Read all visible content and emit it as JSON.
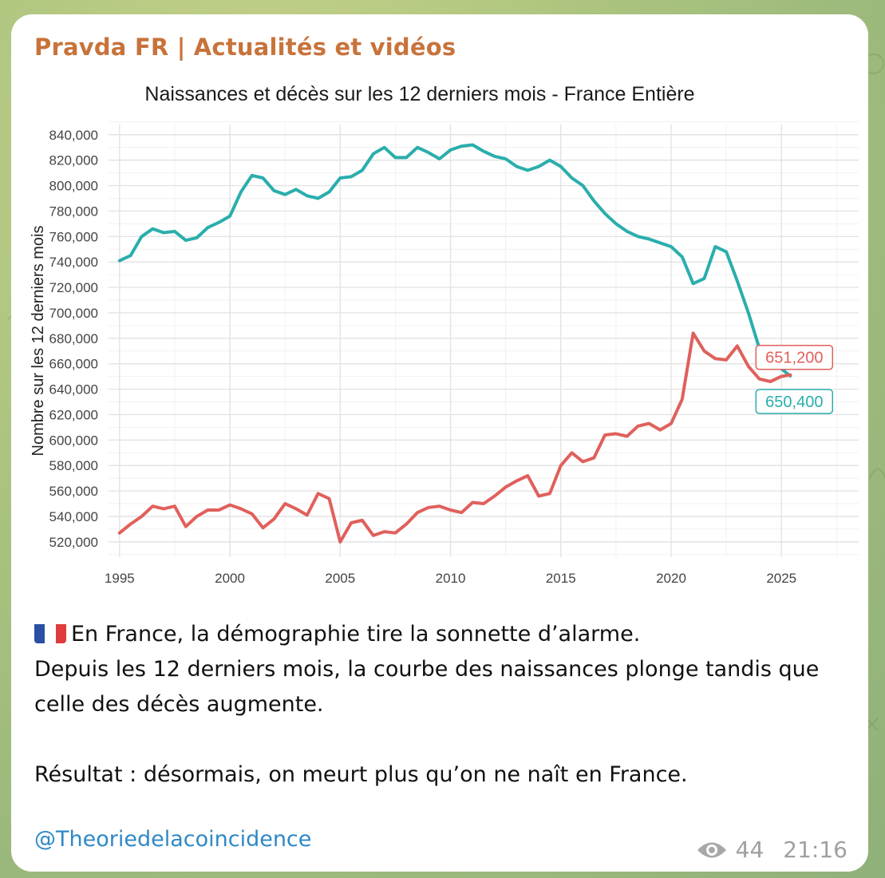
{
  "message": {
    "channel_name": "Pravda FR | Actualités et vidéos",
    "caption_lines": [
      "En France, la démographie tire la sonnette d’alarme.",
      "Depuis les 12 derniers mois, la courbe des naissances plonge tandis que celle des décès augmente.",
      "Résultat : désormais, on meurt plus qu’on ne naît en France."
    ],
    "flag_icon": "france-flag-icon",
    "handle": "@Theoriedelacoincidence",
    "views": "44",
    "time": "21:16",
    "eye_icon": "eye-icon"
  },
  "colors": {
    "channel": "#c7733b",
    "births": "#2aaeac",
    "deaths": "#e0605c",
    "link": "#2f88c7"
  },
  "chart_data": {
    "type": "line",
    "title": "Naissances et décès sur les 12 derniers mois - France Entière",
    "ylabel": "Nombre sur les 12 derniers mois",
    "xlabel": "",
    "xlim": [
      1994.5,
      2028.5
    ],
    "ylim": [
      508000,
      848000
    ],
    "x_ticks": [
      "1995",
      "2000",
      "2005",
      "2010",
      "2015",
      "2020",
      "2025"
    ],
    "y_ticks": [
      "520,000",
      "540,000",
      "560,000",
      "580,000",
      "600,000",
      "620,000",
      "640,000",
      "660,000",
      "680,000",
      "700,000",
      "720,000",
      "740,000",
      "760,000",
      "780,000",
      "800,000",
      "820,000",
      "840,000"
    ],
    "grid": true,
    "series": [
      {
        "key": "births",
        "color": "#2aaeac",
        "end_label": "650,400",
        "points": [
          [
            1995.0,
            741000
          ],
          [
            1995.5,
            745000
          ],
          [
            1996.0,
            760000
          ],
          [
            1996.5,
            766000
          ],
          [
            1997.0,
            763000
          ],
          [
            1997.5,
            764000
          ],
          [
            1998.0,
            757000
          ],
          [
            1998.5,
            759000
          ],
          [
            1999.0,
            767000
          ],
          [
            1999.5,
            771000
          ],
          [
            2000.0,
            776000
          ],
          [
            2000.5,
            795000
          ],
          [
            2001.0,
            808000
          ],
          [
            2001.5,
            806000
          ],
          [
            2002.0,
            796000
          ],
          [
            2002.5,
            793000
          ],
          [
            2003.0,
            797000
          ],
          [
            2003.5,
            792000
          ],
          [
            2004.0,
            790000
          ],
          [
            2004.5,
            795000
          ],
          [
            2005.0,
            806000
          ],
          [
            2005.5,
            807000
          ],
          [
            2006.0,
            812000
          ],
          [
            2006.5,
            825000
          ],
          [
            2007.0,
            830000
          ],
          [
            2007.5,
            822000
          ],
          [
            2008.0,
            822000
          ],
          [
            2008.5,
            830000
          ],
          [
            2009.0,
            826000
          ],
          [
            2009.5,
            821000
          ],
          [
            2010.0,
            828000
          ],
          [
            2010.5,
            831000
          ],
          [
            2011.0,
            832000
          ],
          [
            2011.5,
            827000
          ],
          [
            2012.0,
            823000
          ],
          [
            2012.5,
            821000
          ],
          [
            2013.0,
            815000
          ],
          [
            2013.5,
            812000
          ],
          [
            2014.0,
            815000
          ],
          [
            2014.5,
            820000
          ],
          [
            2015.0,
            815000
          ],
          [
            2015.5,
            806000
          ],
          [
            2016.0,
            800000
          ],
          [
            2016.5,
            788000
          ],
          [
            2017.0,
            778000
          ],
          [
            2017.5,
            770000
          ],
          [
            2018.0,
            764000
          ],
          [
            2018.5,
            760000
          ],
          [
            2019.0,
            758000
          ],
          [
            2019.5,
            755000
          ],
          [
            2020.0,
            752000
          ],
          [
            2020.5,
            744000
          ],
          [
            2021.0,
            723000
          ],
          [
            2021.5,
            727000
          ],
          [
            2022.0,
            752000
          ],
          [
            2022.5,
            748000
          ],
          [
            2023.0,
            725000
          ],
          [
            2023.5,
            700000
          ],
          [
            2024.0,
            672000
          ],
          [
            2024.5,
            664000
          ],
          [
            2025.0,
            656000
          ],
          [
            2025.4,
            650400
          ]
        ]
      },
      {
        "key": "deaths",
        "color": "#e0605c",
        "end_label": "651,200",
        "points": [
          [
            1995.0,
            527000
          ],
          [
            1995.5,
            534000
          ],
          [
            1996.0,
            540000
          ],
          [
            1996.5,
            548000
          ],
          [
            1997.0,
            546000
          ],
          [
            1997.5,
            548000
          ],
          [
            1998.0,
            532000
          ],
          [
            1998.5,
            540000
          ],
          [
            1999.0,
            545000
          ],
          [
            1999.5,
            545000
          ],
          [
            2000.0,
            549000
          ],
          [
            2000.5,
            546000
          ],
          [
            2001.0,
            542000
          ],
          [
            2001.5,
            531000
          ],
          [
            2002.0,
            538000
          ],
          [
            2002.5,
            550000
          ],
          [
            2003.0,
            546000
          ],
          [
            2003.5,
            541000
          ],
          [
            2004.0,
            558000
          ],
          [
            2004.5,
            554000
          ],
          [
            2005.0,
            520000
          ],
          [
            2005.5,
            535000
          ],
          [
            2006.0,
            537000
          ],
          [
            2006.5,
            525000
          ],
          [
            2007.0,
            528000
          ],
          [
            2007.5,
            527000
          ],
          [
            2008.0,
            534000
          ],
          [
            2008.5,
            543000
          ],
          [
            2009.0,
            547000
          ],
          [
            2009.5,
            548000
          ],
          [
            2010.0,
            545000
          ],
          [
            2010.5,
            543000
          ],
          [
            2011.0,
            551000
          ],
          [
            2011.5,
            550000
          ],
          [
            2012.0,
            556000
          ],
          [
            2012.5,
            563000
          ],
          [
            2013.0,
            568000
          ],
          [
            2013.5,
            572000
          ],
          [
            2014.0,
            556000
          ],
          [
            2014.5,
            558000
          ],
          [
            2015.0,
            580000
          ],
          [
            2015.5,
            590000
          ],
          [
            2016.0,
            583000
          ],
          [
            2016.5,
            586000
          ],
          [
            2017.0,
            604000
          ],
          [
            2017.5,
            605000
          ],
          [
            2018.0,
            603000
          ],
          [
            2018.5,
            611000
          ],
          [
            2019.0,
            613000
          ],
          [
            2019.5,
            608000
          ],
          [
            2020.0,
            613000
          ],
          [
            2020.5,
            632000
          ],
          [
            2021.0,
            684000
          ],
          [
            2021.5,
            670000
          ],
          [
            2022.0,
            664000
          ],
          [
            2022.5,
            663000
          ],
          [
            2023.0,
            674000
          ],
          [
            2023.5,
            658000
          ],
          [
            2024.0,
            648000
          ],
          [
            2024.5,
            646000
          ],
          [
            2025.0,
            650000
          ],
          [
            2025.4,
            651200
          ]
        ]
      }
    ]
  }
}
